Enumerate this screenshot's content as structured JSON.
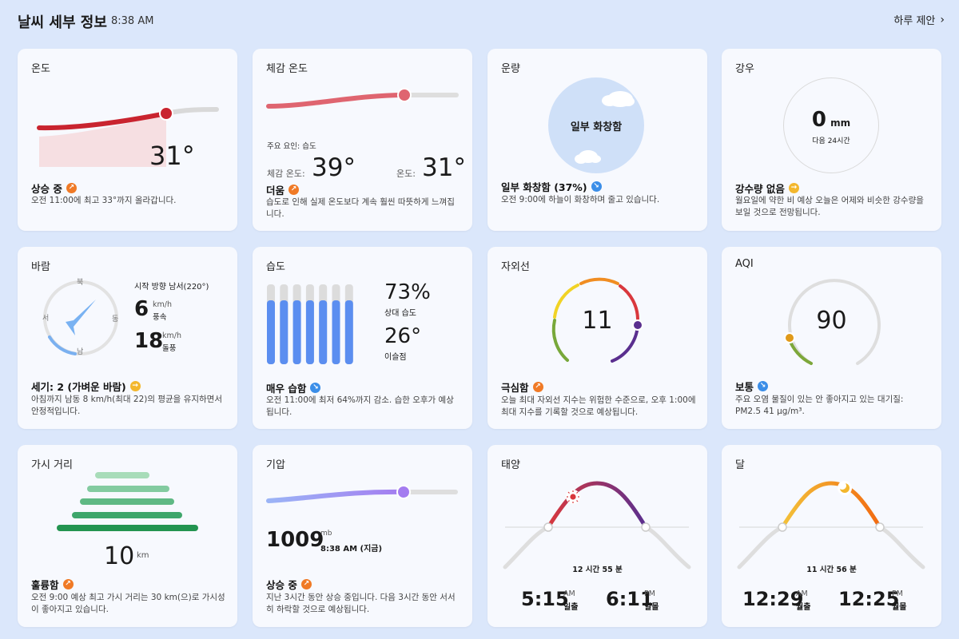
{
  "header": {
    "title": "날씨 세부 정보",
    "time": "8:38 AM",
    "nav_label": "하루 제안"
  },
  "temperature": {
    "title": "온도",
    "value": "31°",
    "status": "상승 중",
    "desc": "오전 11:00에 최고 33°까지 올라갑니다."
  },
  "feels_like": {
    "title": "체감 온도",
    "factor": "주요 요인: 습도",
    "feels_label": "체감 온도:",
    "feels_value": "39°",
    "temp_label": "온도:",
    "temp_value": "31°",
    "status": "더움",
    "desc": "습도로 인해 실제 온도보다 계속 훨씬 따뜻하게 느껴집니다."
  },
  "cloud": {
    "title": "운량",
    "center": "일부 화창함",
    "status": "일부 화창함 (37%)",
    "desc": "오전 9:00에 하늘이 화창하며 줄고 있습니다."
  },
  "rain": {
    "title": "강우",
    "amount": "0",
    "unit": "mm",
    "period": "다음 24시간",
    "status": "강수량 없음",
    "desc": "월요일에 약한 비 예상 오늘은 어제와 비슷한 강수량을 보일 것으로 전망됩니다."
  },
  "wind": {
    "title": "바람",
    "n": "북",
    "e": "동",
    "s": "남",
    "w": "서",
    "direction": "시작 방향 남서(220°)",
    "speed": "6",
    "speed_unit": "km/h",
    "speed_label": "풍속",
    "gust": "18",
    "gust_unit": "km/h",
    "gust_label": "돌풍",
    "status": "세기: 2 (가벼운 바람)",
    "desc": "아침까지 남동 8 km/h(최대 22)의 평균을 유지하면서 안정적입니다."
  },
  "humidity": {
    "title": "습도",
    "value": "73%",
    "value_label": "상대 습도",
    "dew": "26°",
    "dew_label": "이슬점",
    "bars": [
      0.8,
      0.8,
      0.8,
      0.8,
      0.8,
      0.8,
      0.8
    ],
    "status": "매우 습함",
    "desc": "오전 11:00에 최저 64%까지 감소. 습한 오후가 예상됩니다."
  },
  "uv": {
    "title": "자외선",
    "value": "11",
    "status": "극심함",
    "desc": "오늘 최대 자외선 지수는 위험한 수준으로, 오후 1:00에 최대 지수를 기록할 것으로 예상됩니다."
  },
  "aqi": {
    "title": "AQI",
    "value": "90",
    "status": "보통",
    "desc": "주요 오염 물질이 있는 안 좋아지고 있는 대기질: PM2.5 41 μg/m³."
  },
  "visibility": {
    "title": "가시 거리",
    "value": "10",
    "unit": "km",
    "status": "훌륭함",
    "desc": "오전 9:00 예상 최고 가시 거리는 30 km(으)로 가시성이 좋아지고 있습니다."
  },
  "pressure": {
    "title": "기압",
    "value": "1009",
    "unit": "mb",
    "time": "8:38 AM (지금)",
    "status": "상승 중",
    "desc": "지난 3시간 동안 상승 중입니다. 다음 3시간 동안 서서히 하락할 것으로 예상됩니다."
  },
  "sun": {
    "title": "태양",
    "duration": "12 시간 55 분",
    "rise": "5:15",
    "rise_ampm": "AM",
    "rise_label": "일출",
    "set": "6:11",
    "set_ampm": "PM",
    "set_label": "일몰"
  },
  "moon": {
    "title": "달",
    "duration": "11 시간 56 분",
    "rise": "12:29",
    "rise_ampm": "AM",
    "rise_label": "월출",
    "set": "12:25",
    "set_ampm": "PM",
    "set_label": "월몰"
  },
  "colors": {
    "bg": "#dbe7fb",
    "card": "#f7f9fe",
    "temp": "#c9242f",
    "feels": "#df6570",
    "blue": "#5b8ef0",
    "orange": "#f07a26"
  }
}
